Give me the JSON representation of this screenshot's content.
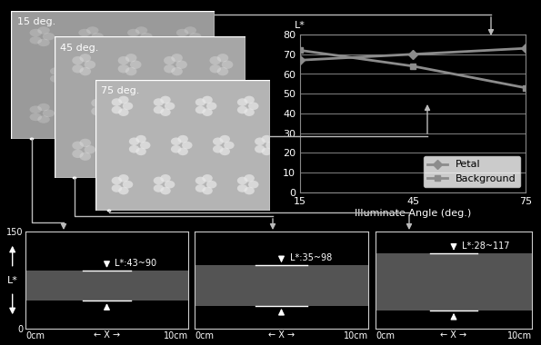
{
  "images": [
    {
      "label": "15 deg."
    },
    {
      "label": "45 deg."
    },
    {
      "label": "75 deg."
    }
  ],
  "chart_data": [
    {
      "type": "line",
      "x_label": "Illuminate Angle (deg.)",
      "y_label": "L*",
      "x": [
        15,
        45,
        75
      ],
      "xlim": [
        15,
        75
      ],
      "xticks": [
        15,
        45,
        75
      ],
      "ylim": [
        0,
        80
      ],
      "yticks": [
        0,
        10,
        20,
        30,
        40,
        50,
        60,
        70,
        80
      ],
      "grid": true,
      "legend": "lower right",
      "series": [
        {
          "name": "Petal",
          "color": "#8c8c8c",
          "marker": "diamond",
          "values": [
            67,
            70,
            73
          ]
        },
        {
          "name": "Background",
          "color": "#8c8c8c",
          "marker": "square",
          "values": [
            72,
            64,
            53
          ]
        }
      ]
    },
    {
      "type": "range",
      "y_label": "L*",
      "x_label": "← X →",
      "xlim": [
        0,
        10
      ],
      "xticks": [
        {
          "value": 0,
          "label": "0cm"
        },
        {
          "value": 10,
          "label": "10cm"
        }
      ],
      "ylim": [
        0,
        150
      ],
      "yticks": [
        0,
        150
      ],
      "range": [
        43,
        90
      ],
      "annotation": "L*:43~90"
    },
    {
      "type": "range",
      "x_label": "← X →",
      "tick_labels": "x",
      "xlim": [
        0,
        10
      ],
      "xticks": [
        {
          "value": 0,
          "label": "0cm"
        },
        {
          "value": 10,
          "label": "10cm"
        }
      ],
      "ylim": [
        0,
        150
      ],
      "yticks": [
        0,
        150
      ],
      "range": [
        35,
        98
      ],
      "annotation": "L*:35~98"
    },
    {
      "type": "range",
      "x_label": "← X →",
      "tick_labels": "x",
      "xlim": [
        0,
        10
      ],
      "xticks": [
        {
          "value": 0,
          "label": "0cm"
        },
        {
          "value": 10,
          "label": "10cm"
        }
      ],
      "ylim": [
        0,
        150
      ],
      "yticks": [
        0,
        150
      ],
      "range": [
        28,
        117
      ],
      "annotation": "L*:28~117"
    }
  ]
}
